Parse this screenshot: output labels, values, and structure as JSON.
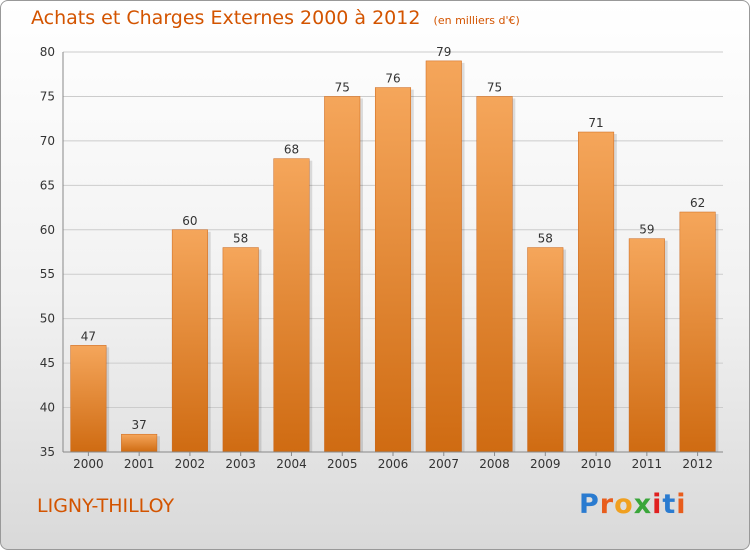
{
  "header": {
    "title": "Achats et Charges Externes 2000 à 2012",
    "unit": "(en milliers d'€)"
  },
  "footer": {
    "commune": "LIGNY-THILLOY",
    "logo_letters": [
      "P",
      "r",
      "o",
      "x",
      "i",
      "t",
      "i"
    ],
    "logo_colors": [
      "#2a7bd0",
      "#e85d1c",
      "#f0a020",
      "#3aa63a",
      "#e02020",
      "#2a7bd0",
      "#e85d1c"
    ]
  },
  "colors": {
    "title": "#d35400",
    "bar_top": "#f5a65b",
    "bar_bottom": "#cf6b12",
    "grid": "#cccccc",
    "axis_text": "#333333"
  },
  "chart_data": {
    "type": "bar",
    "categories": [
      "2000",
      "2001",
      "2002",
      "2003",
      "2004",
      "2005",
      "2006",
      "2007",
      "2008",
      "2009",
      "2010",
      "2011",
      "2012"
    ],
    "values": [
      47,
      37,
      60,
      58,
      68,
      75,
      76,
      79,
      75,
      58,
      71,
      59,
      62
    ],
    "title": "Achats et Charges Externes 2000 à 2012",
    "subtitle": "(en milliers d'€)",
    "ylim": [
      35,
      80
    ],
    "yticks": [
      35,
      40,
      45,
      50,
      55,
      60,
      65,
      70,
      75,
      80
    ],
    "grid": true
  }
}
